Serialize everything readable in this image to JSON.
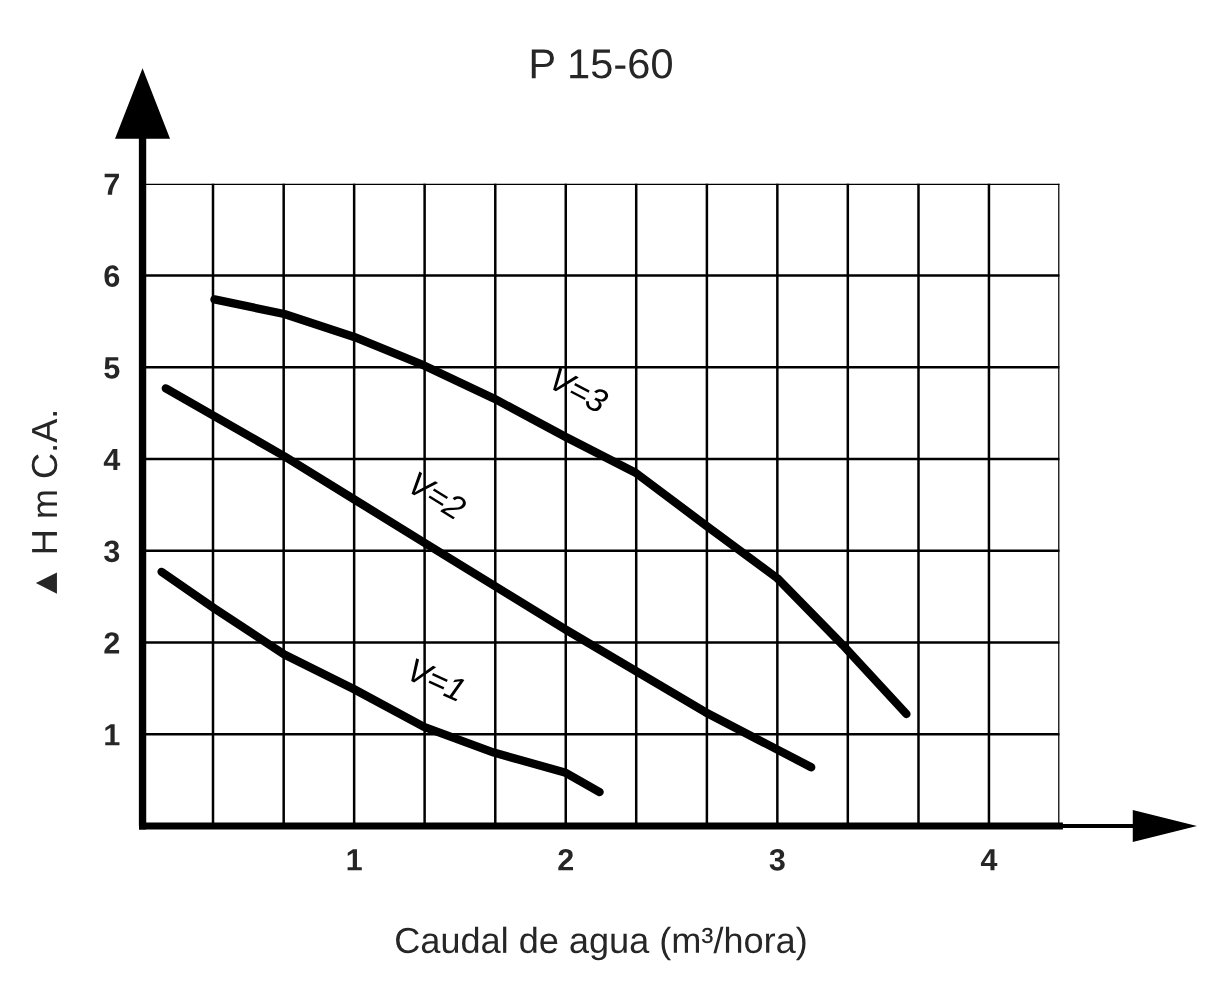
{
  "chart_data": {
    "type": "line",
    "title": "P 15-60",
    "xlabel": "Caudal de agua (m³/hora)",
    "ylabel": "▲ H m C.A.",
    "series": [
      {
        "name": "V=1",
        "color": "#000000",
        "x": [
          0.09,
          0.34,
          0.67,
          1.0,
          1.33,
          1.66,
          2.0,
          2.16
        ],
        "values": [
          2.77,
          2.37,
          1.87,
          1.49,
          1.08,
          0.8,
          0.58,
          0.37
        ]
      },
      {
        "name": "V=2",
        "color": "#000000",
        "x": [
          0.11,
          0.67,
          1.0,
          1.33,
          2.0,
          2.66,
          3.16
        ],
        "values": [
          4.77,
          4.03,
          3.56,
          3.09,
          2.14,
          1.24,
          0.64
        ]
      },
      {
        "name": "V=3",
        "color": "#000000",
        "x": [
          0.34,
          0.67,
          1.0,
          1.33,
          1.66,
          2.0,
          2.33,
          2.66,
          3.0,
          3.31,
          3.61
        ],
        "values": [
          5.74,
          5.58,
          5.33,
          5.02,
          4.66,
          4.24,
          3.85,
          3.28,
          2.7,
          1.97,
          1.22
        ]
      }
    ],
    "xlim": [
      0,
      4.333
    ],
    "ylim": [
      0,
      7
    ],
    "xticks": [
      {
        "value": 0.333,
        "label": null
      },
      {
        "value": 0.667,
        "label": null
      },
      1,
      {
        "value": 1.333,
        "label": null
      },
      {
        "value": 1.667,
        "label": null
      },
      2,
      {
        "value": 2.333,
        "label": null
      },
      {
        "value": 2.667,
        "label": null
      },
      3,
      {
        "value": 3.333,
        "label": null
      },
      {
        "value": 3.667,
        "label": null
      },
      4,
      {
        "value": 4.333,
        "label": null
      }
    ],
    "yticks": [
      1,
      2,
      3,
      4,
      5,
      6,
      7
    ],
    "grid": true,
    "legend": false,
    "marker": "none",
    "line_style": "solid"
  }
}
